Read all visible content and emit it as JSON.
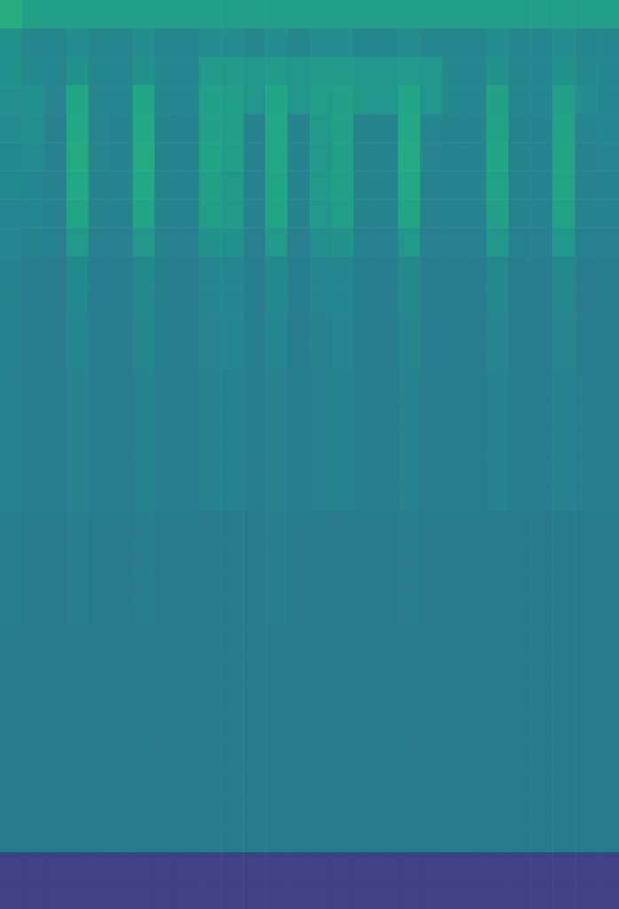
{
  "chart_data": {
    "type": "heatmap",
    "tick_labels": false,
    "zlim": [
      0,
      1
    ],
    "cells": [
      [
        0.62,
        0.57,
        0.56,
        0.56,
        0.56,
        0.56,
        0.56,
        0.56,
        0.56,
        0.56,
        0.56,
        0.56,
        0.56,
        0.56,
        0.56,
        0.56,
        0.56,
        0.56,
        0.56,
        0.56,
        0.56,
        0.56,
        0.56,
        0.56,
        0.56,
        0.56,
        0.56,
        0.56
      ],
      [
        0.5,
        0.46,
        0.46,
        0.48,
        0.46,
        0.46,
        0.48,
        0.46,
        0.46,
        0.48,
        0.48,
        0.46,
        0.48,
        0.46,
        0.48,
        0.48,
        0.46,
        0.46,
        0.48,
        0.46,
        0.46,
        0.46,
        0.48,
        0.46,
        0.46,
        0.48,
        0.46,
        0.46
      ],
      [
        0.5,
        0.47,
        0.46,
        0.5,
        0.46,
        0.46,
        0.5,
        0.46,
        0.46,
        0.54,
        0.54,
        0.52,
        0.54,
        0.52,
        0.54,
        0.54,
        0.52,
        0.52,
        0.54,
        0.52,
        0.46,
        0.46,
        0.5,
        0.46,
        0.46,
        0.5,
        0.47,
        0.46
      ],
      [
        0.49,
        0.5,
        0.45,
        0.59,
        0.45,
        0.45,
        0.59,
        0.45,
        0.46,
        0.57,
        0.56,
        0.52,
        0.59,
        0.52,
        0.55,
        0.57,
        0.52,
        0.52,
        0.59,
        0.52,
        0.46,
        0.45,
        0.57,
        0.45,
        0.46,
        0.56,
        0.48,
        0.46
      ],
      [
        0.48,
        0.49,
        0.44,
        0.6,
        0.45,
        0.44,
        0.6,
        0.44,
        0.44,
        0.57,
        0.55,
        0.44,
        0.6,
        0.44,
        0.54,
        0.57,
        0.44,
        0.44,
        0.6,
        0.45,
        0.44,
        0.44,
        0.58,
        0.44,
        0.44,
        0.58,
        0.45,
        0.45
      ],
      [
        0.47,
        0.48,
        0.44,
        0.61,
        0.45,
        0.44,
        0.61,
        0.44,
        0.44,
        0.58,
        0.55,
        0.44,
        0.6,
        0.44,
        0.53,
        0.57,
        0.44,
        0.44,
        0.61,
        0.45,
        0.44,
        0.44,
        0.59,
        0.44,
        0.44,
        0.59,
        0.44,
        0.45
      ],
      [
        0.47,
        0.46,
        0.44,
        0.6,
        0.44,
        0.44,
        0.6,
        0.44,
        0.44,
        0.57,
        0.54,
        0.44,
        0.59,
        0.44,
        0.54,
        0.56,
        0.44,
        0.44,
        0.6,
        0.44,
        0.44,
        0.44,
        0.58,
        0.44,
        0.44,
        0.59,
        0.44,
        0.44
      ],
      [
        0.46,
        0.45,
        0.44,
        0.59,
        0.44,
        0.44,
        0.59,
        0.44,
        0.44,
        0.56,
        0.54,
        0.44,
        0.59,
        0.44,
        0.53,
        0.56,
        0.44,
        0.44,
        0.59,
        0.44,
        0.44,
        0.44,
        0.57,
        0.44,
        0.44,
        0.58,
        0.44,
        0.44
      ],
      [
        0.45,
        0.44,
        0.43,
        0.53,
        0.43,
        0.43,
        0.52,
        0.43,
        0.43,
        0.51,
        0.5,
        0.43,
        0.53,
        0.43,
        0.49,
        0.51,
        0.43,
        0.43,
        0.53,
        0.43,
        0.43,
        0.43,
        0.52,
        0.43,
        0.43,
        0.52,
        0.43,
        0.43
      ],
      [
        0.44,
        0.42,
        0.42,
        0.47,
        0.42,
        0.42,
        0.47,
        0.42,
        0.42,
        0.46,
        0.46,
        0.42,
        0.47,
        0.42,
        0.45,
        0.46,
        0.42,
        0.42,
        0.47,
        0.42,
        0.42,
        0.42,
        0.47,
        0.42,
        0.42,
        0.47,
        0.42,
        0.42
      ],
      [
        0.44,
        0.42,
        0.42,
        0.47,
        0.42,
        0.42,
        0.47,
        0.42,
        0.42,
        0.46,
        0.46,
        0.42,
        0.47,
        0.42,
        0.45,
        0.46,
        0.42,
        0.42,
        0.47,
        0.42,
        0.42,
        0.42,
        0.47,
        0.42,
        0.42,
        0.47,
        0.42,
        0.42
      ],
      [
        0.44,
        0.42,
        0.42,
        0.46,
        0.42,
        0.42,
        0.46,
        0.42,
        0.42,
        0.45,
        0.45,
        0.42,
        0.46,
        0.42,
        0.44,
        0.45,
        0.42,
        0.42,
        0.46,
        0.42,
        0.42,
        0.42,
        0.46,
        0.42,
        0.42,
        0.46,
        0.42,
        0.42
      ],
      [
        0.44,
        0.42,
        0.42,
        0.46,
        0.42,
        0.42,
        0.46,
        0.42,
        0.42,
        0.45,
        0.45,
        0.42,
        0.46,
        0.42,
        0.44,
        0.45,
        0.42,
        0.42,
        0.46,
        0.42,
        0.42,
        0.42,
        0.46,
        0.42,
        0.42,
        0.46,
        0.42,
        0.42
      ],
      [
        0.43,
        0.42,
        0.42,
        0.44,
        0.42,
        0.42,
        0.44,
        0.42,
        0.42,
        0.44,
        0.43,
        0.42,
        0.44,
        0.42,
        0.43,
        0.44,
        0.42,
        0.42,
        0.44,
        0.42,
        0.42,
        0.42,
        0.44,
        0.42,
        0.42,
        0.44,
        0.42,
        0.42
      ],
      [
        0.43,
        0.42,
        0.42,
        0.44,
        0.42,
        0.42,
        0.44,
        0.42,
        0.42,
        0.44,
        0.43,
        0.42,
        0.44,
        0.42,
        0.43,
        0.44,
        0.42,
        0.42,
        0.44,
        0.42,
        0.42,
        0.42,
        0.44,
        0.42,
        0.42,
        0.44,
        0.42,
        0.42
      ],
      [
        0.43,
        0.42,
        0.42,
        0.44,
        0.42,
        0.42,
        0.44,
        0.42,
        0.42,
        0.44,
        0.43,
        0.42,
        0.44,
        0.42,
        0.43,
        0.44,
        0.42,
        0.42,
        0.44,
        0.42,
        0.42,
        0.42,
        0.44,
        0.42,
        0.42,
        0.44,
        0.42,
        0.42
      ],
      [
        0.43,
        0.42,
        0.42,
        0.44,
        0.42,
        0.42,
        0.44,
        0.42,
        0.42,
        0.44,
        0.43,
        0.42,
        0.44,
        0.42,
        0.43,
        0.44,
        0.42,
        0.42,
        0.44,
        0.42,
        0.42,
        0.42,
        0.44,
        0.42,
        0.42,
        0.44,
        0.42,
        0.42
      ],
      [
        0.43,
        0.42,
        0.42,
        0.44,
        0.42,
        0.42,
        0.44,
        0.42,
        0.42,
        0.44,
        0.43,
        0.42,
        0.44,
        0.42,
        0.43,
        0.44,
        0.42,
        0.42,
        0.44,
        0.42,
        0.42,
        0.42,
        0.44,
        0.42,
        0.42,
        0.44,
        0.42,
        0.42
      ],
      [
        0.42,
        0.41,
        0.41,
        0.42,
        0.41,
        0.41,
        0.42,
        0.41,
        0.41,
        0.41,
        0.41,
        0.41,
        0.42,
        0.41,
        0.41,
        0.41,
        0.41,
        0.41,
        0.42,
        0.41,
        0.41,
        0.41,
        0.41,
        0.41,
        0.41,
        0.41,
        0.41,
        0.41
      ],
      [
        0.42,
        0.41,
        0.41,
        0.42,
        0.41,
        0.41,
        0.42,
        0.41,
        0.41,
        0.41,
        0.41,
        0.41,
        0.42,
        0.41,
        0.41,
        0.41,
        0.41,
        0.41,
        0.42,
        0.41,
        0.41,
        0.41,
        0.41,
        0.41,
        0.41,
        0.41,
        0.41,
        0.41
      ],
      [
        0.42,
        0.41,
        0.41,
        0.42,
        0.41,
        0.41,
        0.42,
        0.41,
        0.41,
        0.41,
        0.41,
        0.41,
        0.42,
        0.41,
        0.41,
        0.41,
        0.41,
        0.41,
        0.42,
        0.41,
        0.41,
        0.41,
        0.41,
        0.41,
        0.41,
        0.41,
        0.41,
        0.41
      ],
      [
        0.42,
        0.41,
        0.41,
        0.42,
        0.41,
        0.41,
        0.42,
        0.41,
        0.41,
        0.41,
        0.41,
        0.41,
        0.42,
        0.41,
        0.41,
        0.41,
        0.41,
        0.41,
        0.42,
        0.41,
        0.41,
        0.41,
        0.41,
        0.41,
        0.41,
        0.41,
        0.41,
        0.41
      ],
      [
        0.41,
        0.41,
        0.41,
        0.41,
        0.41,
        0.41,
        0.41,
        0.41,
        0.41,
        0.41,
        0.41,
        0.41,
        0.41,
        0.41,
        0.41,
        0.41,
        0.41,
        0.41,
        0.41,
        0.41,
        0.41,
        0.41,
        0.41,
        0.41,
        0.41,
        0.41,
        0.41,
        0.41
      ],
      [
        0.41,
        0.41,
        0.41,
        0.41,
        0.41,
        0.41,
        0.41,
        0.41,
        0.41,
        0.41,
        0.41,
        0.41,
        0.41,
        0.41,
        0.41,
        0.41,
        0.41,
        0.41,
        0.41,
        0.41,
        0.41,
        0.41,
        0.41,
        0.41,
        0.41,
        0.41,
        0.41,
        0.41
      ],
      [
        0.41,
        0.41,
        0.41,
        0.41,
        0.41,
        0.41,
        0.41,
        0.41,
        0.41,
        0.41,
        0.41,
        0.41,
        0.41,
        0.41,
        0.41,
        0.41,
        0.41,
        0.41,
        0.41,
        0.41,
        0.41,
        0.41,
        0.41,
        0.41,
        0.41,
        0.41,
        0.41,
        0.41
      ],
      [
        0.41,
        0.41,
        0.41,
        0.41,
        0.41,
        0.41,
        0.41,
        0.41,
        0.41,
        0.41,
        0.41,
        0.41,
        0.41,
        0.41,
        0.41,
        0.41,
        0.41,
        0.41,
        0.41,
        0.41,
        0.41,
        0.41,
        0.41,
        0.41,
        0.41,
        0.41,
        0.41,
        0.41
      ],
      [
        0.41,
        0.41,
        0.41,
        0.41,
        0.41,
        0.41,
        0.41,
        0.41,
        0.41,
        0.41,
        0.41,
        0.41,
        0.41,
        0.41,
        0.41,
        0.41,
        0.41,
        0.41,
        0.41,
        0.41,
        0.41,
        0.41,
        0.41,
        0.41,
        0.41,
        0.41,
        0.41,
        0.41
      ],
      [
        0.41,
        0.41,
        0.41,
        0.41,
        0.41,
        0.41,
        0.41,
        0.41,
        0.41,
        0.41,
        0.41,
        0.41,
        0.41,
        0.41,
        0.41,
        0.41,
        0.41,
        0.41,
        0.41,
        0.41,
        0.41,
        0.41,
        0.41,
        0.41,
        0.41,
        0.41,
        0.41,
        0.41
      ],
      [
        0.41,
        0.41,
        0.41,
        0.41,
        0.41,
        0.41,
        0.41,
        0.41,
        0.41,
        0.41,
        0.41,
        0.41,
        0.41,
        0.41,
        0.41,
        0.41,
        0.41,
        0.41,
        0.41,
        0.41,
        0.41,
        0.41,
        0.41,
        0.41,
        0.41,
        0.41,
        0.41,
        0.41
      ],
      [
        0.41,
        0.41,
        0.41,
        0.41,
        0.41,
        0.41,
        0.41,
        0.41,
        0.41,
        0.41,
        0.41,
        0.41,
        0.41,
        0.41,
        0.41,
        0.41,
        0.41,
        0.41,
        0.41,
        0.41,
        0.41,
        0.41,
        0.41,
        0.41,
        0.41,
        0.41,
        0.41,
        0.41
      ],
      [
        0.19,
        0.19,
        0.19,
        0.19,
        0.19,
        0.19,
        0.19,
        0.19,
        0.19,
        0.19,
        0.19,
        0.19,
        0.19,
        0.19,
        0.19,
        0.19,
        0.19,
        0.19,
        0.19,
        0.19,
        0.19,
        0.19,
        0.19,
        0.19,
        0.19,
        0.19,
        0.19,
        0.19
      ],
      [
        0.19,
        0.19,
        0.19,
        0.19,
        0.19,
        0.19,
        0.19,
        0.19,
        0.19,
        0.19,
        0.19,
        0.19,
        0.19,
        0.19,
        0.19,
        0.19,
        0.19,
        0.19,
        0.19,
        0.19,
        0.19,
        0.19,
        0.19,
        0.19,
        0.19,
        0.19,
        0.19,
        0.19
      ]
    ]
  }
}
